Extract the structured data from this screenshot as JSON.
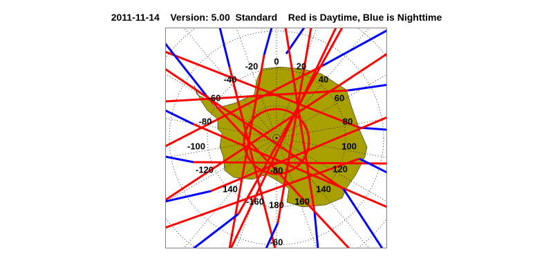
{
  "header": {
    "date": "2011-11-14",
    "version": "Version: 5.00",
    "product": "Standard",
    "legend_text": "Red is Daytime, Blue is Nighttime"
  },
  "map": {
    "projection": "south polar stereographic",
    "region": "Antarctica",
    "colors": {
      "land": "#a8a000",
      "daytime": "#ff0000",
      "nighttime": "#0000ff",
      "grid": "#000000",
      "frame": "#808080"
    },
    "longitude_labels": [
      "0",
      "20",
      "40",
      "60",
      "80",
      "100",
      "120",
      "140",
      "160",
      "180",
      "-160",
      "140",
      "-120",
      "-100",
      "-80",
      "-60",
      "-40",
      "-20"
    ],
    "latitude_labels": [
      "-80",
      "-60"
    ]
  }
}
